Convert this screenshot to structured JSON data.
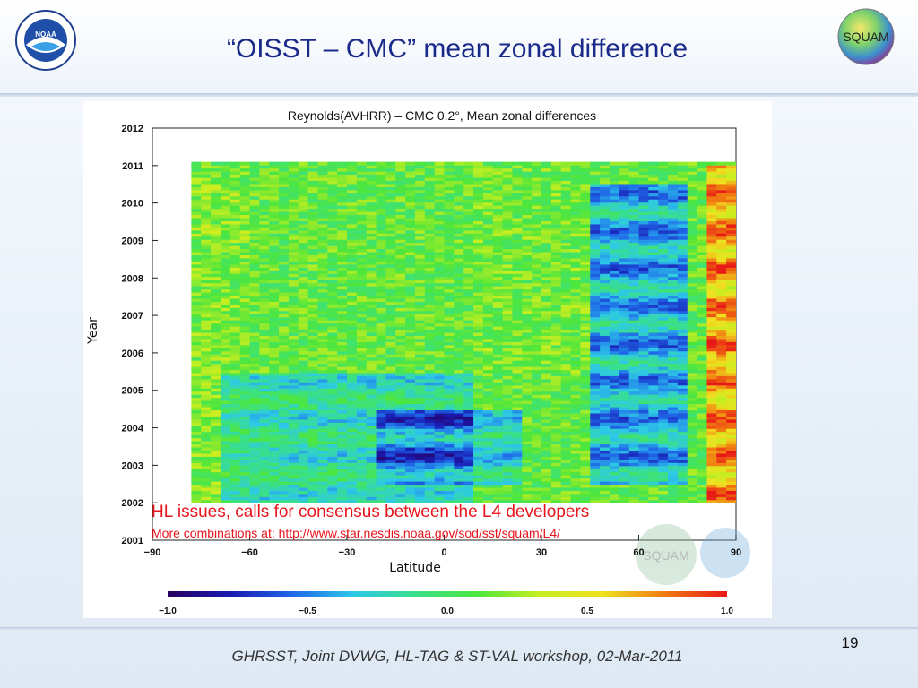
{
  "slide": {
    "title": "“OISST – CMC” mean zonal difference",
    "page_number": "19",
    "footer": "GHRSST, Joint DVWG, HL-TAG & ST-VAL workshop, 02-Mar-2011"
  },
  "logos": {
    "left_label": "NOAA",
    "right_label": "SQUAM",
    "watermark_label": "SQUAM"
  },
  "colors": {
    "title": "#1a2a8a",
    "annotation": "#e8141b",
    "colormap": [
      "#2a0060",
      "#1a1ab0",
      "#1f66e8",
      "#2dc8e8",
      "#39e08a",
      "#4ee63c",
      "#c8ee20",
      "#f0e020",
      "#f07a10",
      "#e81818"
    ]
  },
  "annotations": {
    "line1": "HL issues, calls for consensus between the L4 developers",
    "line2": "More combinations at: http://www.star.nesdis.noaa.gov/sod/sst/squam/L4/"
  },
  "chart_data": {
    "type": "heatmap",
    "title": "Reynolds(AVHRR) – CMC 0.2°, Mean zonal differences",
    "xlabel": "Latitude",
    "ylabel": "Year",
    "xlim": [
      -90,
      90
    ],
    "ylim": [
      2001,
      2012
    ],
    "x_ticks": [
      -90,
      -60,
      -30,
      0,
      30,
      60,
      90
    ],
    "x_tick_labels": [
      "−90",
      "−60",
      "−30",
      "0",
      "30",
      "60",
      "90"
    ],
    "y_ticks": [
      2001,
      2002,
      2003,
      2004,
      2005,
      2006,
      2007,
      2008,
      2009,
      2010,
      2011,
      2012
    ],
    "y_tick_labels": [
      "2001",
      "2002",
      "2003",
      "2004",
      "2005",
      "2006",
      "2007",
      "2008",
      "2009",
      "2010",
      "2011",
      "2012"
    ],
    "data_x_range": [
      -78,
      90
    ],
    "data_y_range": [
      2002,
      2011.1
    ],
    "colorbar": {
      "range": [
        -1.0,
        1.0
      ],
      "ticks": [
        -1.0,
        -0.5,
        0.0,
        0.5,
        1.0
      ],
      "tick_labels": [
        "−1.0",
        "−0.5",
        "0.0",
        "0.5",
        "1.0"
      ]
    },
    "features": [
      {
        "lat": [
          -70,
          10
        ],
        "years": [
          2002.0,
          2005.5
        ],
        "value": -0.4
      },
      {
        "lat": [
          -20,
          25
        ],
        "years": [
          2002.5,
          2004.5
        ],
        "value": -0.5
      },
      {
        "lat": [
          45,
          75
        ],
        "years": [
          2002.5,
          2010.5
        ],
        "value": -0.7
      },
      {
        "lat": [
          80,
          90
        ],
        "years": [
          2002.0,
          2011.0
        ],
        "value": 0.8
      },
      {
        "lat": [
          -78,
          -60
        ],
        "years": [
          2002.0,
          2011.0
        ],
        "value": 0.1
      },
      {
        "lat": [
          10,
          45
        ],
        "years": [
          2005.5,
          2011.0
        ],
        "value": 0.05
      }
    ]
  }
}
